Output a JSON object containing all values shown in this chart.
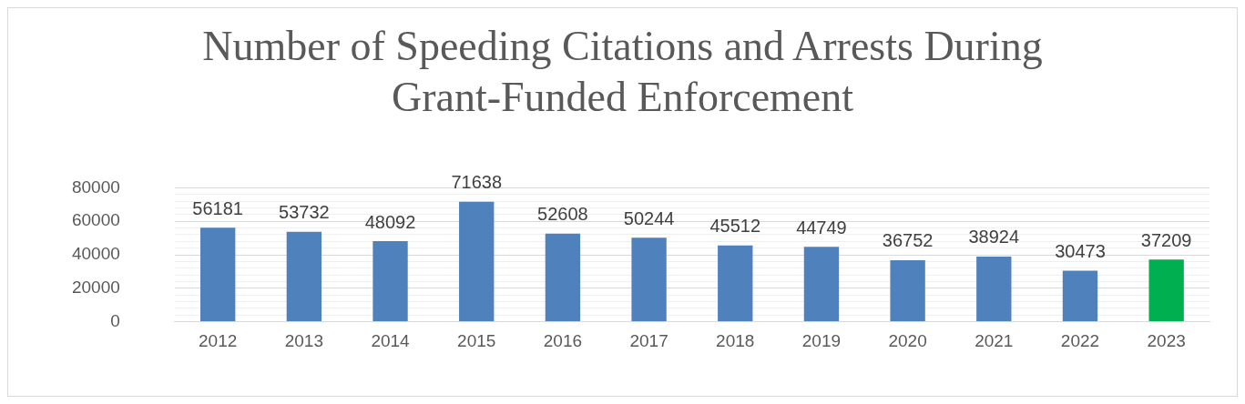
{
  "chart_data": {
    "type": "bar",
    "title": "Number of Speeding Citations and Arrests During Grant-Funded Enforcement",
    "categories": [
      "2012",
      "2013",
      "2014",
      "2015",
      "2016",
      "2017",
      "2018",
      "2019",
      "2020",
      "2021",
      "2022",
      "2023"
    ],
    "values": [
      56181,
      53732,
      48092,
      71638,
      52608,
      50244,
      45512,
      44749,
      36752,
      38924,
      30473,
      37209
    ],
    "colors": [
      "#4f81bd",
      "#4f81bd",
      "#4f81bd",
      "#4f81bd",
      "#4f81bd",
      "#4f81bd",
      "#4f81bd",
      "#4f81bd",
      "#4f81bd",
      "#4f81bd",
      "#4f81bd",
      "#00b050"
    ],
    "ylim": [
      0,
      80000
    ],
    "yticks": [
      0,
      {
        "value": 4000,
        "label": null
      },
      {
        "value": 8000,
        "label": null
      },
      {
        "value": 12000,
        "label": null
      },
      {
        "value": 16000,
        "label": null
      },
      20000,
      {
        "value": 24000,
        "label": null
      },
      {
        "value": 28000,
        "label": null
      },
      {
        "value": 32000,
        "label": null
      },
      {
        "value": 36000,
        "label": null
      },
      40000,
      {
        "value": 44000,
        "label": null
      },
      {
        "value": 48000,
        "label": null
      },
      {
        "value": 52000,
        "label": null
      },
      {
        "value": 56000,
        "label": null
      },
      60000,
      {
        "value": 64000,
        "label": null
      },
      {
        "value": 68000,
        "label": null
      },
      {
        "value": 72000,
        "label": null
      },
      {
        "value": 76000,
        "label": null
      },
      80000
    ],
    "grid": "y",
    "data_labels": true,
    "legend": false
  }
}
